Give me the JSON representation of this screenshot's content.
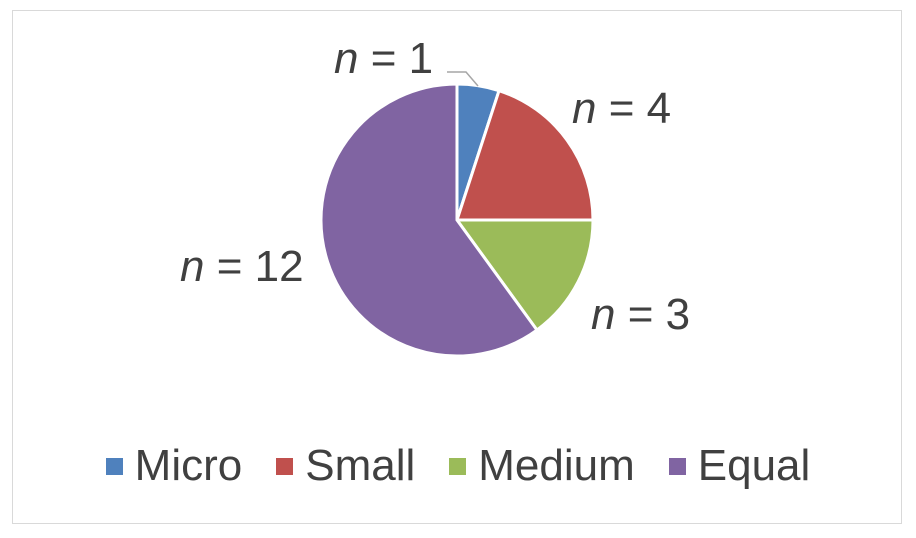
{
  "chart_data": {
    "type": "pie",
    "categories": [
      "Micro",
      "Small",
      "Medium",
      "Equal"
    ],
    "values": [
      1,
      4,
      3,
      12
    ],
    "colors": [
      "#4f81bd",
      "#c0504d",
      "#9bbb59",
      "#8064a2"
    ],
    "data_labels": [
      {
        "var": "n",
        "text": " = 1"
      },
      {
        "var": "n",
        "text": " = 4"
      },
      {
        "var": "n",
        "text": " = 3"
      },
      {
        "var": "n",
        "text": " = 12"
      }
    ],
    "legend_position": "bottom",
    "title": ""
  }
}
